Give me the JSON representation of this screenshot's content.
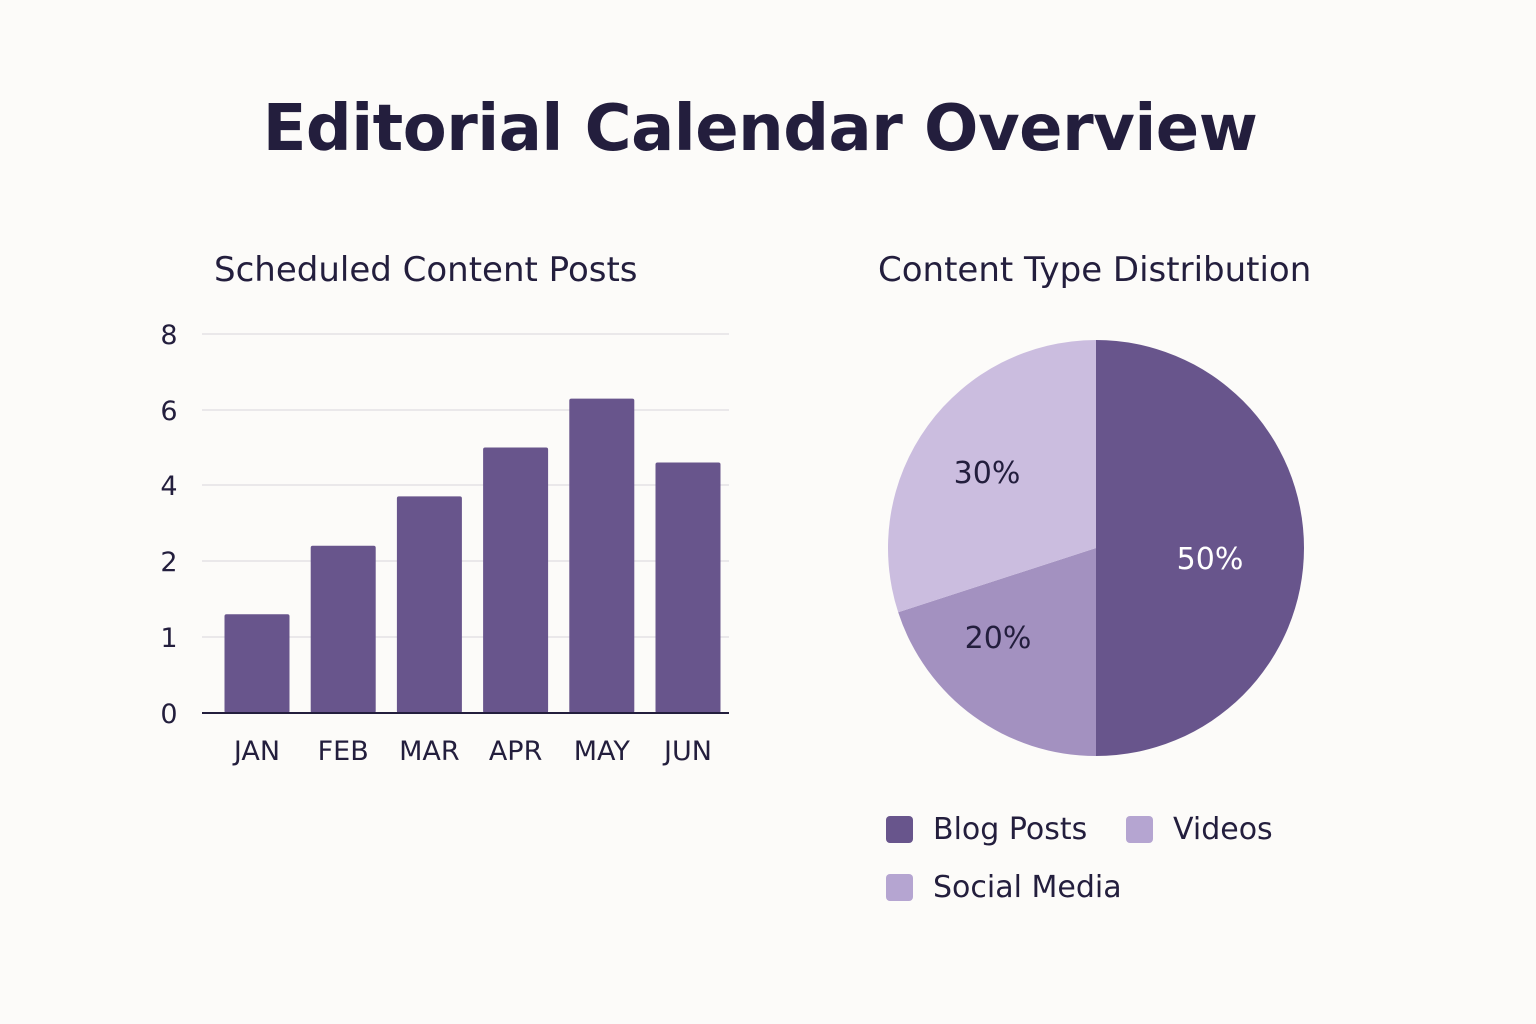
{
  "page": {
    "title": "Editorial Calendar Overview"
  },
  "chart_data": [
    {
      "type": "bar",
      "title": "Scheduled Content Posts",
      "categories": [
        "JAN",
        "FEB",
        "MAR",
        "APR",
        "MAY",
        "JUN"
      ],
      "values": [
        1.3,
        2.4,
        3.7,
        5.0,
        6.3,
        4.6
      ],
      "y_ticks": [
        "0",
        "1",
        "2",
        "4",
        "6",
        "8"
      ],
      "xlabel": "",
      "ylabel": "",
      "grid": true,
      "bar_color": "#68558c",
      "grid_color": "#e4e2e6",
      "axis_color": "#231e3d"
    },
    {
      "type": "pie",
      "title": "Content Type Distribution",
      "slices": [
        {
          "label": "Blog Posts",
          "value": 50,
          "display": "50%",
          "color": "#68558c",
          "label_color": "#ffffff"
        },
        {
          "label": "Social Media",
          "value": 20,
          "display": "20%",
          "color": "#a391c0",
          "label_color": "#231e3d"
        },
        {
          "label": "Videos",
          "value": 30,
          "display": "30%",
          "color": "#cbbddf",
          "label_color": "#231e3d"
        }
      ],
      "legend": [
        {
          "label": "Blog Posts",
          "color": "#68558c"
        },
        {
          "label": "Videos",
          "color": "#b5a5d1"
        },
        {
          "label": "Social Media",
          "color": "#b5a5d1"
        }
      ],
      "legend_position": "bottom"
    }
  ]
}
